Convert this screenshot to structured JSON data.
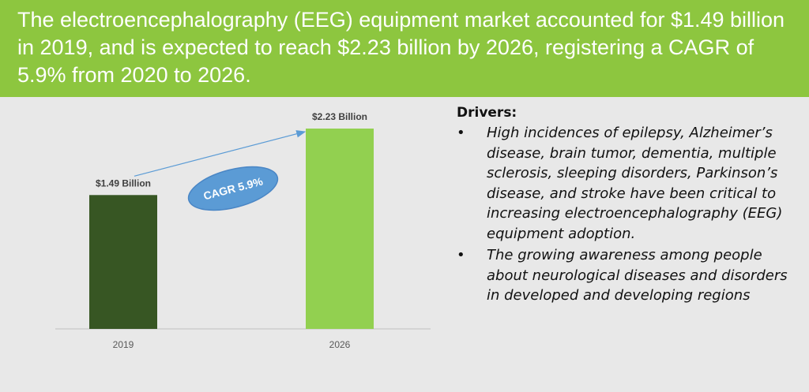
{
  "header": {
    "text": "The electroencephalography (EEG) equipment market accounted for $1.49 billion in 2019, and is expected to reach $2.23 billion by 2026, registering a CAGR of 5.9% from 2020 to 2026."
  },
  "chart_data": {
    "type": "bar",
    "categories": [
      "2019",
      "2026"
    ],
    "values": [
      1.49,
      2.23
    ],
    "data_labels": [
      "$1.49 Billion",
      "$2.23 Billion"
    ],
    "bar_colors": [
      "#375623",
      "#92d050"
    ],
    "annotation": "CAGR 5.9%",
    "annotation_color": "#5b9bd5",
    "arrow_color": "#5b9bd5",
    "ylim": [
      0,
      2.23
    ],
    "grid": false,
    "legend": "none"
  },
  "drivers": {
    "heading": "Drivers:",
    "bullet": "•",
    "items": [
      "High incidences of epilepsy, Alzheimer’s disease, brain tumor, dementia, multiple sclerosis, sleeping disorders, Parkinson’s disease, and stroke have been critical to increasing electroencephalography (EEG) equipment adoption.",
      "The growing awareness among people about neurological diseases and disorders in developed and developing regions"
    ]
  }
}
